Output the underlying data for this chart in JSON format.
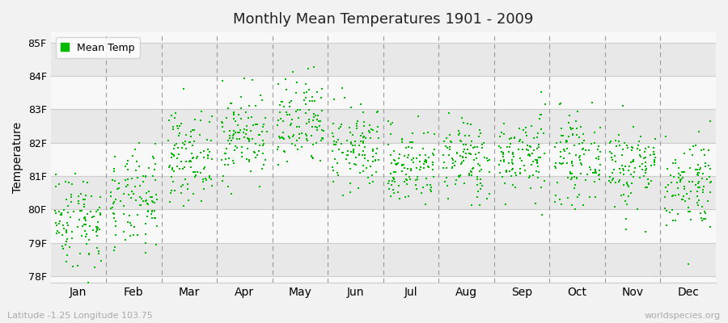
{
  "title": "Monthly Mean Temperatures 1901 - 2009",
  "ylabel": "Temperature",
  "xlabel_labels": [
    "Jan",
    "Feb",
    "Mar",
    "Apr",
    "May",
    "Jun",
    "Jul",
    "Aug",
    "Sep",
    "Oct",
    "Nov",
    "Dec"
  ],
  "ytick_labels": [
    "78F",
    "79F",
    "80F",
    "81F",
    "82F",
    "83F",
    "84F",
    "85F"
  ],
  "ytick_values": [
    78,
    79,
    80,
    81,
    82,
    83,
    84,
    85
  ],
  "ylim": [
    77.8,
    85.3
  ],
  "dot_color": "#00bb00",
  "dot_size": 3,
  "legend_label": "Mean Temp",
  "footer_left": "Latitude -1.25 Longitude 103.75",
  "footer_right": "worldspecies.org",
  "bg_color": "#f2f2f2",
  "band_light": "#f8f8f8",
  "band_dark": "#e8e8e8",
  "grid_color": "#cccccc",
  "dashed_color": "#999999",
  "years": 109,
  "month_means": [
    79.7,
    80.2,
    81.6,
    82.2,
    82.5,
    81.8,
    81.3,
    81.5,
    81.6,
    81.5,
    81.3,
    80.8
  ],
  "month_stds": [
    0.72,
    0.75,
    0.65,
    0.65,
    0.7,
    0.62,
    0.58,
    0.6,
    0.6,
    0.62,
    0.65,
    0.7
  ]
}
